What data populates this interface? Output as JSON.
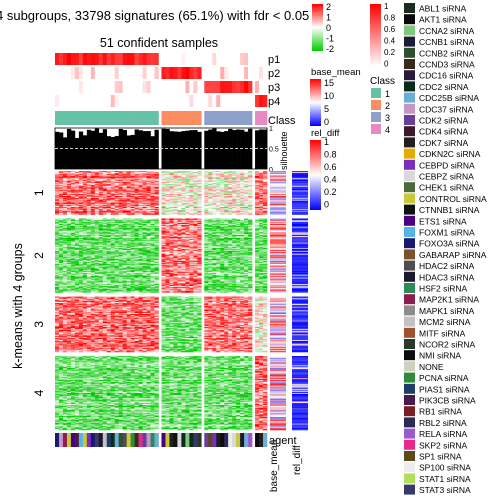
{
  "title": "4 subgroups, 33798 signatures (65.1%) with fdr < 0.05",
  "subtitle": "51 confident samples",
  "row_title": "k-means with 4 groups",
  "colors": {
    "class1": "#66C2A5",
    "class2": "#FC8D62",
    "class3": "#8DA0CB",
    "class4": "#E78AC3",
    "heat_high": "#FF0000",
    "heat_mid": "#FFFFFF",
    "heat_low": "#00CC00"
  },
  "chart_data": {
    "type": "heatmap",
    "row_groups": [
      {
        "label": "1",
        "rows": 47,
        "pattern": [
          "high",
          "mid",
          "mid",
          "high"
        ]
      },
      {
        "label": "2",
        "rows": 80,
        "pattern": [
          "low",
          "high",
          "low",
          "low"
        ]
      },
      {
        "label": "3",
        "rows": 60,
        "pattern": [
          "high",
          "low",
          "high",
          "mid"
        ]
      },
      {
        "label": "4",
        "rows": 80,
        "pattern": [
          "low",
          "low",
          "low",
          "high"
        ]
      }
    ],
    "column_groups": [
      {
        "class": "1",
        "columns": 26
      },
      {
        "class": "2",
        "columns": 10
      },
      {
        "class": "3",
        "columns": 12
      },
      {
        "class": "4",
        "columns": 3
      }
    ],
    "annotation_tracks": [
      "p1",
      "p2",
      "p3",
      "p4",
      "Class"
    ],
    "silhouette": {
      "label": "silhouette",
      "ticks": [
        "0",
        "0.5",
        "1"
      ],
      "threshold": 0.5
    },
    "row_annotations": [
      "base_mean",
      "rel_diff"
    ],
    "bottom_annotation": "agent",
    "heat_legend": {
      "ticks": [
        "2",
        "1",
        "0",
        "-1",
        "-2"
      ]
    },
    "prob_legend": {
      "ticks": [
        "1",
        "0.8",
        "0.6",
        "0.4",
        "0.2",
        "0"
      ]
    },
    "base_mean_legend": {
      "title": "base_mean",
      "ticks": [
        "15",
        "10",
        "5",
        "0"
      ]
    },
    "rel_diff_legend": {
      "title": "rel_diff",
      "ticks": [
        "1",
        "0.8",
        "0.6",
        "0.4",
        "0.2",
        "0"
      ]
    },
    "class_legend": {
      "title": "Class",
      "items": [
        "1",
        "2",
        "3",
        "4"
      ]
    },
    "agent_legend": [
      {
        "label": "ABL1 siRNA",
        "color": "#1C2A1F"
      },
      {
        "label": "AKT1 siRNA",
        "color": "#0A0A0A"
      },
      {
        "label": "CCNA2 siRNA",
        "color": "#7FC97F"
      },
      {
        "label": "CCNB1 siRNA",
        "color": "#1B1B3A"
      },
      {
        "label": "CCNB2 siRNA",
        "color": "#2F4F2F"
      },
      {
        "label": "CCND3 siRNA",
        "color": "#3A2A1A"
      },
      {
        "label": "CDC16 siRNA",
        "color": "#2B1B3B"
      },
      {
        "label": "CDC2 siRNA",
        "color": "#0B2B1B"
      },
      {
        "label": "CDC25B siRNA",
        "color": "#6BAED6"
      },
      {
        "label": "CDC37 siRNA",
        "color": "#C994C7"
      },
      {
        "label": "CDK2 siRNA",
        "color": "#6A3D9A"
      },
      {
        "label": "CDK4 siRNA",
        "color": "#3B1B2B"
      },
      {
        "label": "CDK7 siRNA",
        "color": "#202020"
      },
      {
        "label": "CDKN2C siRNA",
        "color": "#E6AB02"
      },
      {
        "label": "CEBPD siRNA",
        "color": "#7B2FBE"
      },
      {
        "label": "CEBPZ siRNA",
        "color": "#D9D9D9"
      },
      {
        "label": "CHEK1 siRNA",
        "color": "#4A6A3A"
      },
      {
        "label": "CONTROL siRNA",
        "color": "#C7C83A"
      },
      {
        "label": "CTNNB1 siRNA",
        "color": "#111111"
      },
      {
        "label": "ETS1 siRNA",
        "color": "#4B0082"
      },
      {
        "label": "FOXM1 siRNA",
        "color": "#56B4E9"
      },
      {
        "label": "FOXO3A siRNA",
        "color": "#191970"
      },
      {
        "label": "GABARAP siRNA",
        "color": "#7A5230"
      },
      {
        "label": "HDAC2 siRNA",
        "color": "#4D4D4D"
      },
      {
        "label": "HDAC3 siRNA",
        "color": "#1A1A2E"
      },
      {
        "label": "HSF2 siRNA",
        "color": "#2E8B57"
      },
      {
        "label": "MAP2K1 siRNA",
        "color": "#8E1B4D"
      },
      {
        "label": "MAPK1 siRNA",
        "color": "#8C8C8C"
      },
      {
        "label": "MCM2 siRNA",
        "color": "#C2C2C2"
      },
      {
        "label": "MITF siRNA",
        "color": "#A0522D"
      },
      {
        "label": "NCOR2 siRNA",
        "color": "#2A3A2A"
      },
      {
        "label": "NMI siRNA",
        "color": "#0D0D0D"
      },
      {
        "label": "NONE",
        "color": "#D0D0C0"
      },
      {
        "label": "PCNA siRNA",
        "color": "#2E8B3A"
      },
      {
        "label": "PIAS1 siRNA",
        "color": "#1F3B6B"
      },
      {
        "label": "PIK3CB siRNA",
        "color": "#4A1A4A"
      },
      {
        "label": "RB1 siRNA",
        "color": "#7A1F1F"
      },
      {
        "label": "RBL2 siRNA",
        "color": "#2B2B5A"
      },
      {
        "label": "RELA siRNA",
        "color": "#9B59D0"
      },
      {
        "label": "SKP2 siRNA",
        "color": "#E7298A"
      },
      {
        "label": "SP1 siRNA",
        "color": "#5A4A1A"
      },
      {
        "label": "SP100 siRNA",
        "color": "#EDEDED"
      },
      {
        "label": "STAT1 siRNA",
        "color": "#B2DF5A"
      },
      {
        "label": "STAT3 siRNA",
        "color": "#3A3A6A"
      }
    ]
  }
}
